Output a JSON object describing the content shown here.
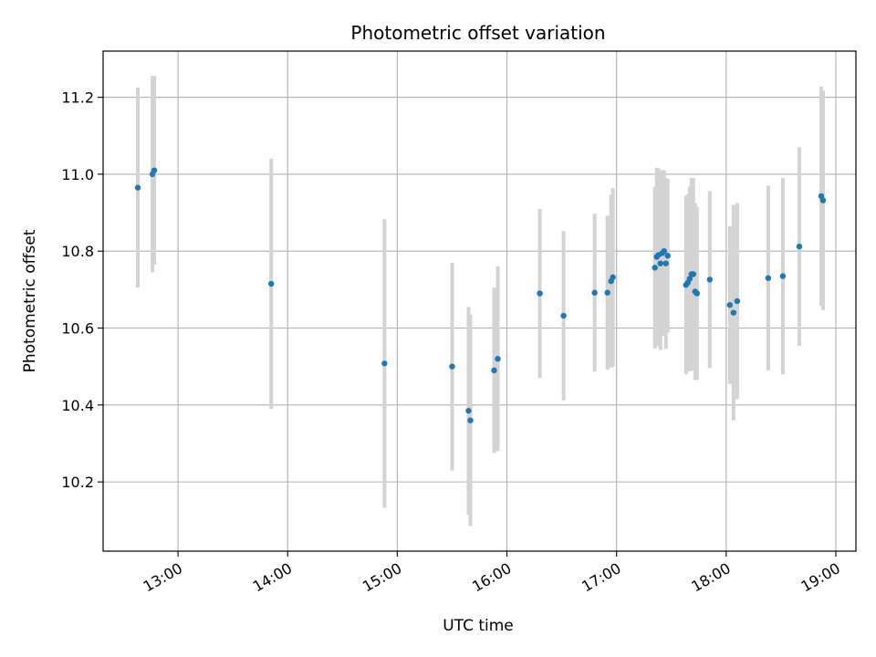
{
  "chart_data": {
    "type": "scatter",
    "title": "Photometric offset variation",
    "xlabel": "UTC time",
    "ylabel": "Photometric offset",
    "x_ticks": [
      "13:00",
      "14:00",
      "15:00",
      "16:00",
      "17:00",
      "18:00",
      "19:00"
    ],
    "y_ticks": [
      "10.2",
      "10.4",
      "10.6",
      "10.8",
      "11.0",
      "11.2"
    ],
    "xlim": [
      "12:19",
      "19:11"
    ],
    "ylim": [
      10.02,
      11.32
    ],
    "grid": true,
    "colors": {
      "point": "#1f77b4",
      "errorbar": "#d3d3d3",
      "grid": "#b0b0b0"
    },
    "points": [
      {
        "time": "12:38",
        "y": 10.965,
        "err": 0.26
      },
      {
        "time": "12:46",
        "y": 11.0,
        "err": 0.255
      },
      {
        "time": "12:47",
        "y": 11.01,
        "err": 0.245
      },
      {
        "time": "13:51",
        "y": 10.715,
        "err": 0.325
      },
      {
        "time": "14:53",
        "y": 10.508,
        "err": 0.375
      },
      {
        "time": "15:30",
        "y": 10.5,
        "err": 0.27
      },
      {
        "time": "15:39",
        "y": 10.385,
        "err": 0.27
      },
      {
        "time": "15:40",
        "y": 10.36,
        "err": 0.275
      },
      {
        "time": "15:53",
        "y": 10.49,
        "err": 0.215
      },
      {
        "time": "15:55",
        "y": 10.52,
        "err": 0.24
      },
      {
        "time": "16:18",
        "y": 10.69,
        "err": 0.22
      },
      {
        "time": "16:31",
        "y": 10.632,
        "err": 0.22
      },
      {
        "time": "16:48",
        "y": 10.692,
        "err": 0.205
      },
      {
        "time": "16:55",
        "y": 10.692,
        "err": 0.2
      },
      {
        "time": "16:57",
        "y": 10.722,
        "err": 0.225
      },
      {
        "time": "16:58",
        "y": 10.732,
        "err": 0.232
      },
      {
        "time": "17:21",
        "y": 10.757,
        "err": 0.21
      },
      {
        "time": "17:22",
        "y": 10.785,
        "err": 0.232
      },
      {
        "time": "17:23",
        "y": 10.79,
        "err": 0.225
      },
      {
        "time": "17:24",
        "y": 10.768,
        "err": 0.225
      },
      {
        "time": "17:25",
        "y": 10.795,
        "err": 0.215
      },
      {
        "time": "17:26",
        "y": 10.8,
        "err": 0.21
      },
      {
        "time": "17:27",
        "y": 10.768,
        "err": 0.222
      },
      {
        "time": "17:28",
        "y": 10.788,
        "err": 0.2
      },
      {
        "time": "17:38",
        "y": 10.712,
        "err": 0.232
      },
      {
        "time": "17:39",
        "y": 10.718,
        "err": 0.23
      },
      {
        "time": "17:40",
        "y": 10.728,
        "err": 0.24
      },
      {
        "time": "17:41",
        "y": 10.74,
        "err": 0.25
      },
      {
        "time": "17:42",
        "y": 10.74,
        "err": 0.25
      },
      {
        "time": "17:43",
        "y": 10.695,
        "err": 0.23
      },
      {
        "time": "17:44",
        "y": 10.69,
        "err": 0.225
      },
      {
        "time": "17:51",
        "y": 10.726,
        "err": 0.23
      },
      {
        "time": "18:02",
        "y": 10.66,
        "err": 0.205
      },
      {
        "time": "18:04",
        "y": 10.64,
        "err": 0.28
      },
      {
        "time": "18:06",
        "y": 10.67,
        "err": 0.255
      },
      {
        "time": "18:23",
        "y": 10.73,
        "err": 0.24
      },
      {
        "time": "18:31",
        "y": 10.735,
        "err": 0.255
      },
      {
        "time": "18:40",
        "y": 10.812,
        "err": 0.258
      },
      {
        "time": "18:52",
        "y": 10.943,
        "err": 0.285
      },
      {
        "time": "18:53",
        "y": 10.932,
        "err": 0.285
      }
    ]
  }
}
